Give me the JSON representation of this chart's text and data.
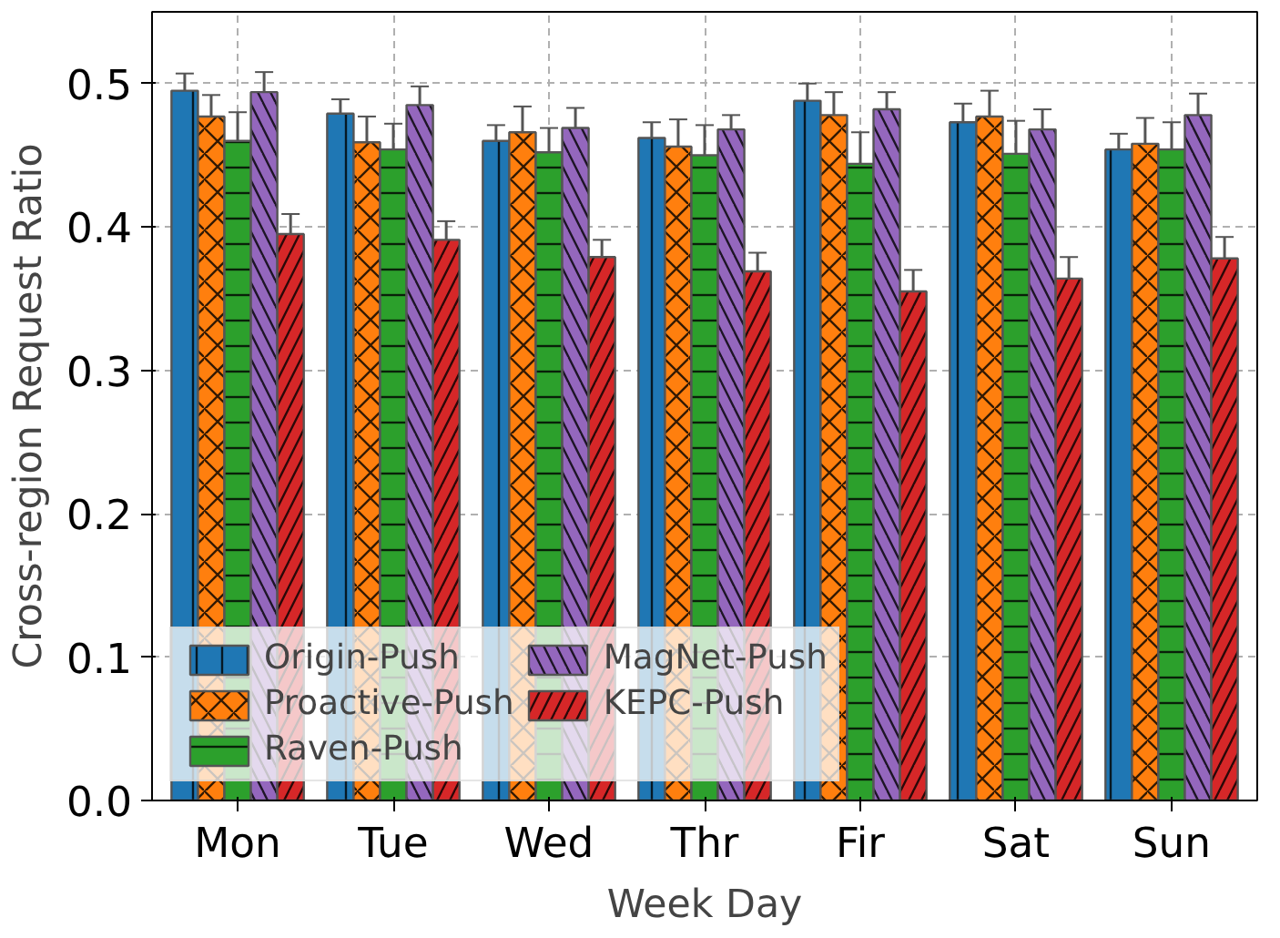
{
  "chart_data": {
    "type": "bar",
    "xlabel": "Week Day",
    "ylabel": "Cross-region Request Ratio",
    "categories": [
      "Mon",
      "Tue",
      "Wed",
      "Thr",
      "Fir",
      "Sat",
      "Sun"
    ],
    "series": [
      {
        "name": "Origin-Push",
        "color": "#1f77b4",
        "values": [
          0.495,
          0.479,
          0.46,
          0.462,
          0.488,
          0.473,
          0.454
        ],
        "errors": [
          0.012,
          0.01,
          0.011,
          0.011,
          0.012,
          0.013,
          0.011
        ]
      },
      {
        "name": "Proactive-Push",
        "color": "#ff7f0e",
        "values": [
          0.477,
          0.459,
          0.466,
          0.456,
          0.478,
          0.477,
          0.458
        ],
        "errors": [
          0.015,
          0.018,
          0.018,
          0.019,
          0.016,
          0.018,
          0.018
        ]
      },
      {
        "name": "Raven-Push",
        "color": "#2ca02c",
        "values": [
          0.46,
          0.454,
          0.452,
          0.45,
          0.444,
          0.451,
          0.454
        ],
        "errors": [
          0.02,
          0.018,
          0.017,
          0.021,
          0.022,
          0.023,
          0.019
        ]
      },
      {
        "name": "MagNet-Push",
        "color": "#9467bd",
        "values": [
          0.494,
          0.485,
          0.469,
          0.468,
          0.482,
          0.468,
          0.478
        ],
        "errors": [
          0.014,
          0.013,
          0.014,
          0.01,
          0.012,
          0.014,
          0.015
        ]
      },
      {
        "name": "KEPC-Push",
        "color": "#d62728",
        "values": [
          0.395,
          0.391,
          0.379,
          0.369,
          0.355,
          0.364,
          0.378
        ],
        "errors": [
          0.014,
          0.013,
          0.012,
          0.013,
          0.015,
          0.015,
          0.015
        ]
      }
    ],
    "ylim": [
      0,
      0.55
    ],
    "yticks": [
      {
        "value": 0,
        "label": "0.0"
      },
      0.1,
      0.2,
      0.3,
      0.4,
      0.5
    ],
    "grid": true,
    "legend": "bottom left"
  }
}
